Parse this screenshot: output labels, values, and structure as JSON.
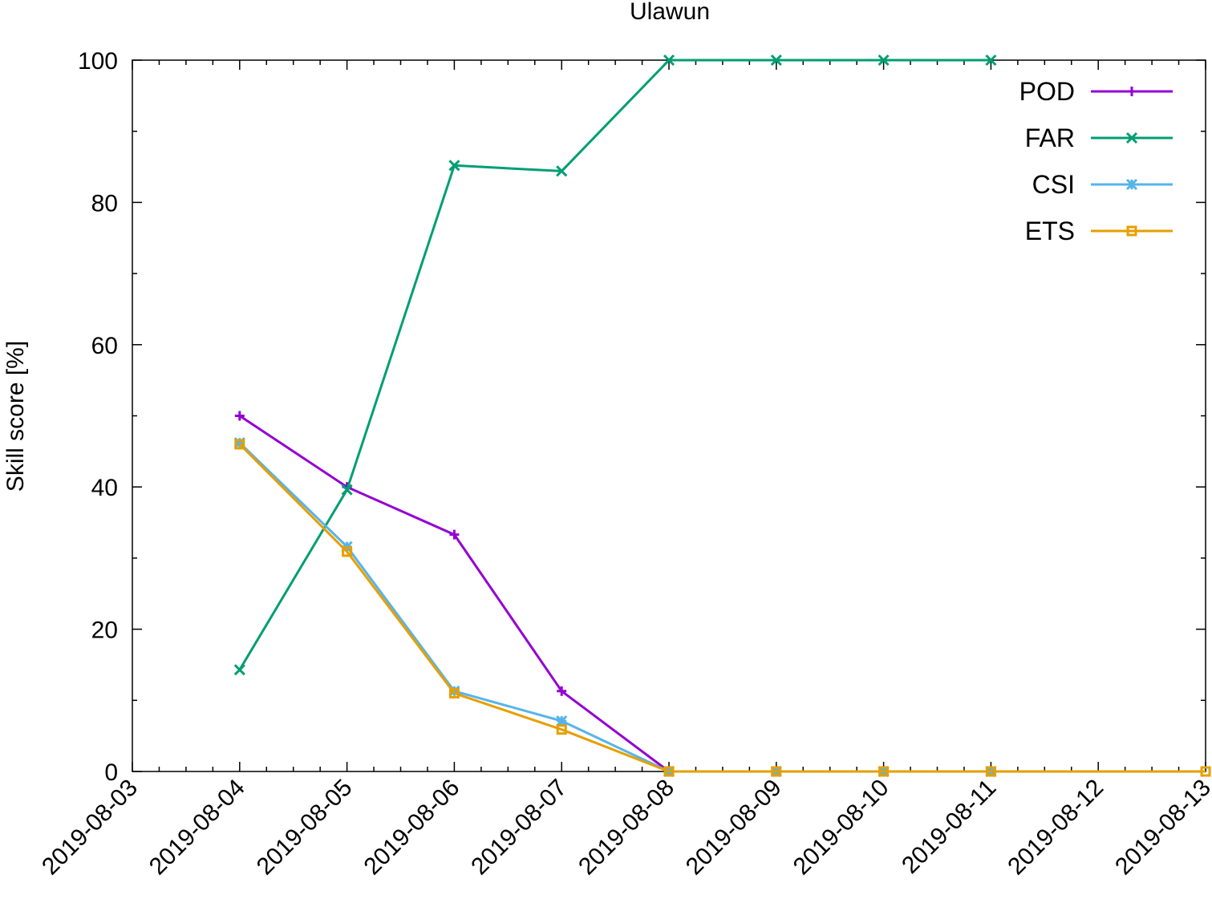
{
  "chart_data": {
    "type": "line",
    "title": "Ulawun",
    "xlabel": "",
    "ylabel": "Skill score [%]",
    "x_type": "date",
    "xlim": [
      "2019-08-03",
      "2019-08-13"
    ],
    "ylim": [
      0,
      100
    ],
    "x_ticks": [
      "2019-08-03",
      "2019-08-04",
      "2019-08-05",
      "2019-08-06",
      "2019-08-07",
      "2019-08-08",
      "2019-08-09",
      "2019-08-10",
      "2019-08-11",
      "2019-08-12",
      "2019-08-13"
    ],
    "y_ticks": [
      0,
      20,
      40,
      60,
      80,
      100
    ],
    "grid": false,
    "legend_position": "top-right",
    "series": [
      {
        "name": "POD",
        "color": "#9400d3",
        "marker": "plus",
        "points": [
          {
            "x": "2019-08-04",
            "y": 50.0
          },
          {
            "x": "2019-08-05",
            "y": 40.0
          },
          {
            "x": "2019-08-06",
            "y": 33.3
          },
          {
            "x": "2019-08-07",
            "y": 11.3
          },
          {
            "x": "2019-08-08",
            "y": 0
          }
        ]
      },
      {
        "name": "FAR",
        "color": "#009e73",
        "marker": "cross",
        "points": [
          {
            "x": "2019-08-04",
            "y": 14.3
          },
          {
            "x": "2019-08-05",
            "y": 39.6
          },
          {
            "x": "2019-08-06",
            "y": 85.2
          },
          {
            "x": "2019-08-07",
            "y": 84.4
          },
          {
            "x": "2019-08-08",
            "y": 100
          },
          {
            "x": "2019-08-09",
            "y": 100
          },
          {
            "x": "2019-08-10",
            "y": 100
          },
          {
            "x": "2019-08-11",
            "y": 100
          }
        ]
      },
      {
        "name": "CSI",
        "color": "#56b4e9",
        "marker": "star",
        "points": [
          {
            "x": "2019-08-04",
            "y": 46.2
          },
          {
            "x": "2019-08-05",
            "y": 31.6
          },
          {
            "x": "2019-08-06",
            "y": 11.3
          },
          {
            "x": "2019-08-07",
            "y": 7.1
          },
          {
            "x": "2019-08-08",
            "y": 0
          },
          {
            "x": "2019-08-09",
            "y": 0
          },
          {
            "x": "2019-08-10",
            "y": 0
          },
          {
            "x": "2019-08-11",
            "y": 0
          }
        ]
      },
      {
        "name": "ETS",
        "color": "#e69f00",
        "marker": "square",
        "points": [
          {
            "x": "2019-08-04",
            "y": 46.0
          },
          {
            "x": "2019-08-05",
            "y": 30.9
          },
          {
            "x": "2019-08-06",
            "y": 11.0
          },
          {
            "x": "2019-08-07",
            "y": 5.9
          },
          {
            "x": "2019-08-08",
            "y": 0
          },
          {
            "x": "2019-08-09",
            "y": 0
          },
          {
            "x": "2019-08-10",
            "y": 0
          },
          {
            "x": "2019-08-11",
            "y": 0
          },
          {
            "x": "2019-08-13",
            "y": 0
          }
        ]
      }
    ]
  }
}
